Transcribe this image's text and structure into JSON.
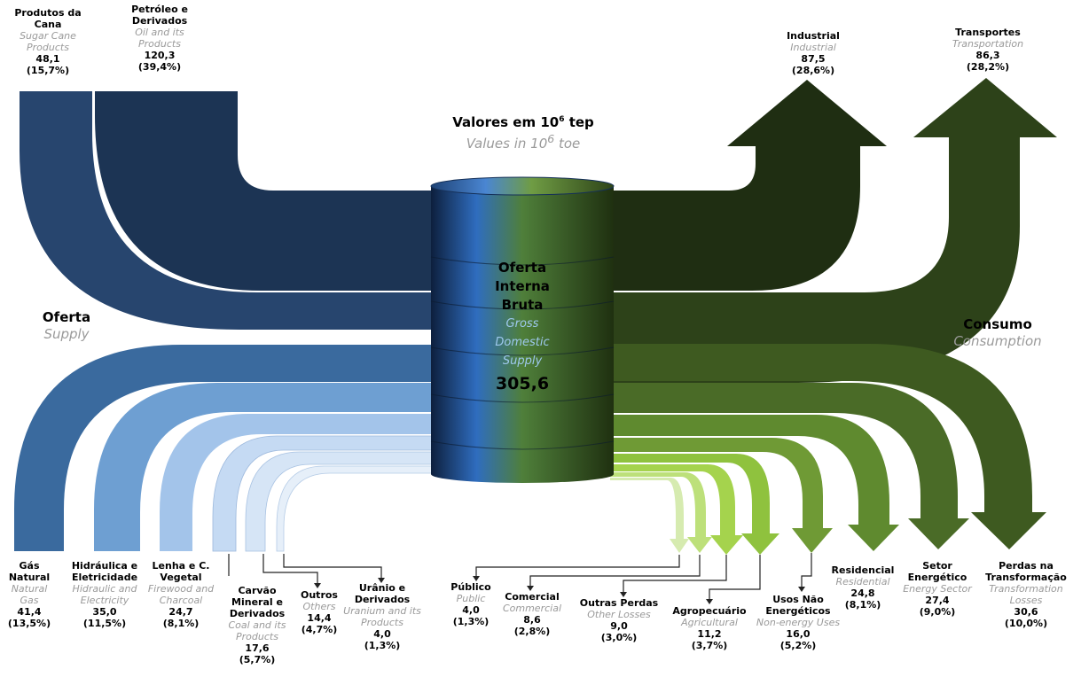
{
  "header": {
    "title_pt_prefix": "Valores em 10",
    "title_exp": "6",
    "title_pt_suffix": " tep",
    "title_en_prefix": "Values in 10",
    "title_en_exp": "6",
    "title_en_suffix": " toe"
  },
  "center": {
    "pt_lines": [
      "Oferta",
      "Interna",
      "Bruta"
    ],
    "en_lines": [
      "Gross",
      "Domestic",
      "Supply"
    ],
    "total": "305,6"
  },
  "supply": {
    "pt": "Oferta",
    "en": "Supply"
  },
  "consumption": {
    "pt": "Consumo",
    "en": "Consumption"
  },
  "supply_items": [
    {
      "pt": "Produtos da Cana",
      "en": "Sugar Cane Products",
      "value": "48,1",
      "pct": "(15,7%)"
    },
    {
      "pt": "Petróleo e Derivados",
      "en": "Oil and its Products",
      "value": "120,3",
      "pct": "(39,4%)"
    },
    {
      "pt": "Gás Natural",
      "en": "Natural Gas",
      "value": "41,4",
      "pct": "(13,5%)"
    },
    {
      "pt": "Hidráulica e Eletricidade",
      "en": "Hidraulic and Electricity",
      "value": "35,0",
      "pct": "(11,5%)"
    },
    {
      "pt": "Lenha e C. Vegetal",
      "en": "Firewood and Charcoal",
      "value": "24,7",
      "pct": "(8,1%)"
    },
    {
      "pt": "Carvão Mineral e Derivados",
      "en": "Coal and its Products",
      "value": "17,6",
      "pct": "(5,7%)"
    },
    {
      "pt": "Outros",
      "en": "Others",
      "value": "14,4",
      "pct": "(4,7%)"
    },
    {
      "pt": "Urânio e Derivados",
      "en": "Uranium and its Products",
      "value": "4,0",
      "pct": "(1,3%)"
    }
  ],
  "consumption_items": [
    {
      "pt": "Industrial",
      "en": "Industrial",
      "value": "87,5",
      "pct": "(28,6%)"
    },
    {
      "pt": "Transportes",
      "en": "Transportation",
      "value": "86,3",
      "pct": "(28,2%)"
    },
    {
      "pt": "Público",
      "en": "Public",
      "value": "4,0",
      "pct": "(1,3%)"
    },
    {
      "pt": "Comercial",
      "en": "Commercial",
      "value": "8,6",
      "pct": "(2,8%)"
    },
    {
      "pt": "Outras Perdas",
      "en": "Other Losses",
      "value": "9,0",
      "pct": "(3,0%)"
    },
    {
      "pt": "Agropecuário",
      "en": "Agricultural",
      "value": "11,2",
      "pct": "(3,7%)"
    },
    {
      "pt": "Usos Não Energéticos",
      "en": "Non-energy Uses",
      "value": "16,0",
      "pct": "(5,2%)"
    },
    {
      "pt": "Residencial",
      "en": "Residential",
      "value": "24,8",
      "pct": "(8,1%)"
    },
    {
      "pt": "Setor Energético",
      "en": "Energy Sector",
      "value": "27,4",
      "pct": "(9,0%)"
    },
    {
      "pt": "Perdas na Transformação",
      "en": "Transformation Losses",
      "value": "30,6",
      "pct": "(10,0%)"
    }
  ],
  "colors": {
    "oil": "#1c3454",
    "cane": "#27456e",
    "gas": "#3a6a9e",
    "hydro": "#6e9fd2",
    "firewood": "#a3c4ea",
    "coal": "#c5daf3",
    "others": "#d6e5f6",
    "uranium": "#e6eff9",
    "industrial": "#1f2e12",
    "transport": "#2d4219",
    "losses": "#3e5a20",
    "energy": "#4a6b27",
    "residential": "#5f8a2f",
    "nonenergy": "#6f9a35",
    "agri": "#8fc23e",
    "other_losses": "#a5d34d",
    "commercial": "#bde07a",
    "public": "#d6ebb0"
  }
}
